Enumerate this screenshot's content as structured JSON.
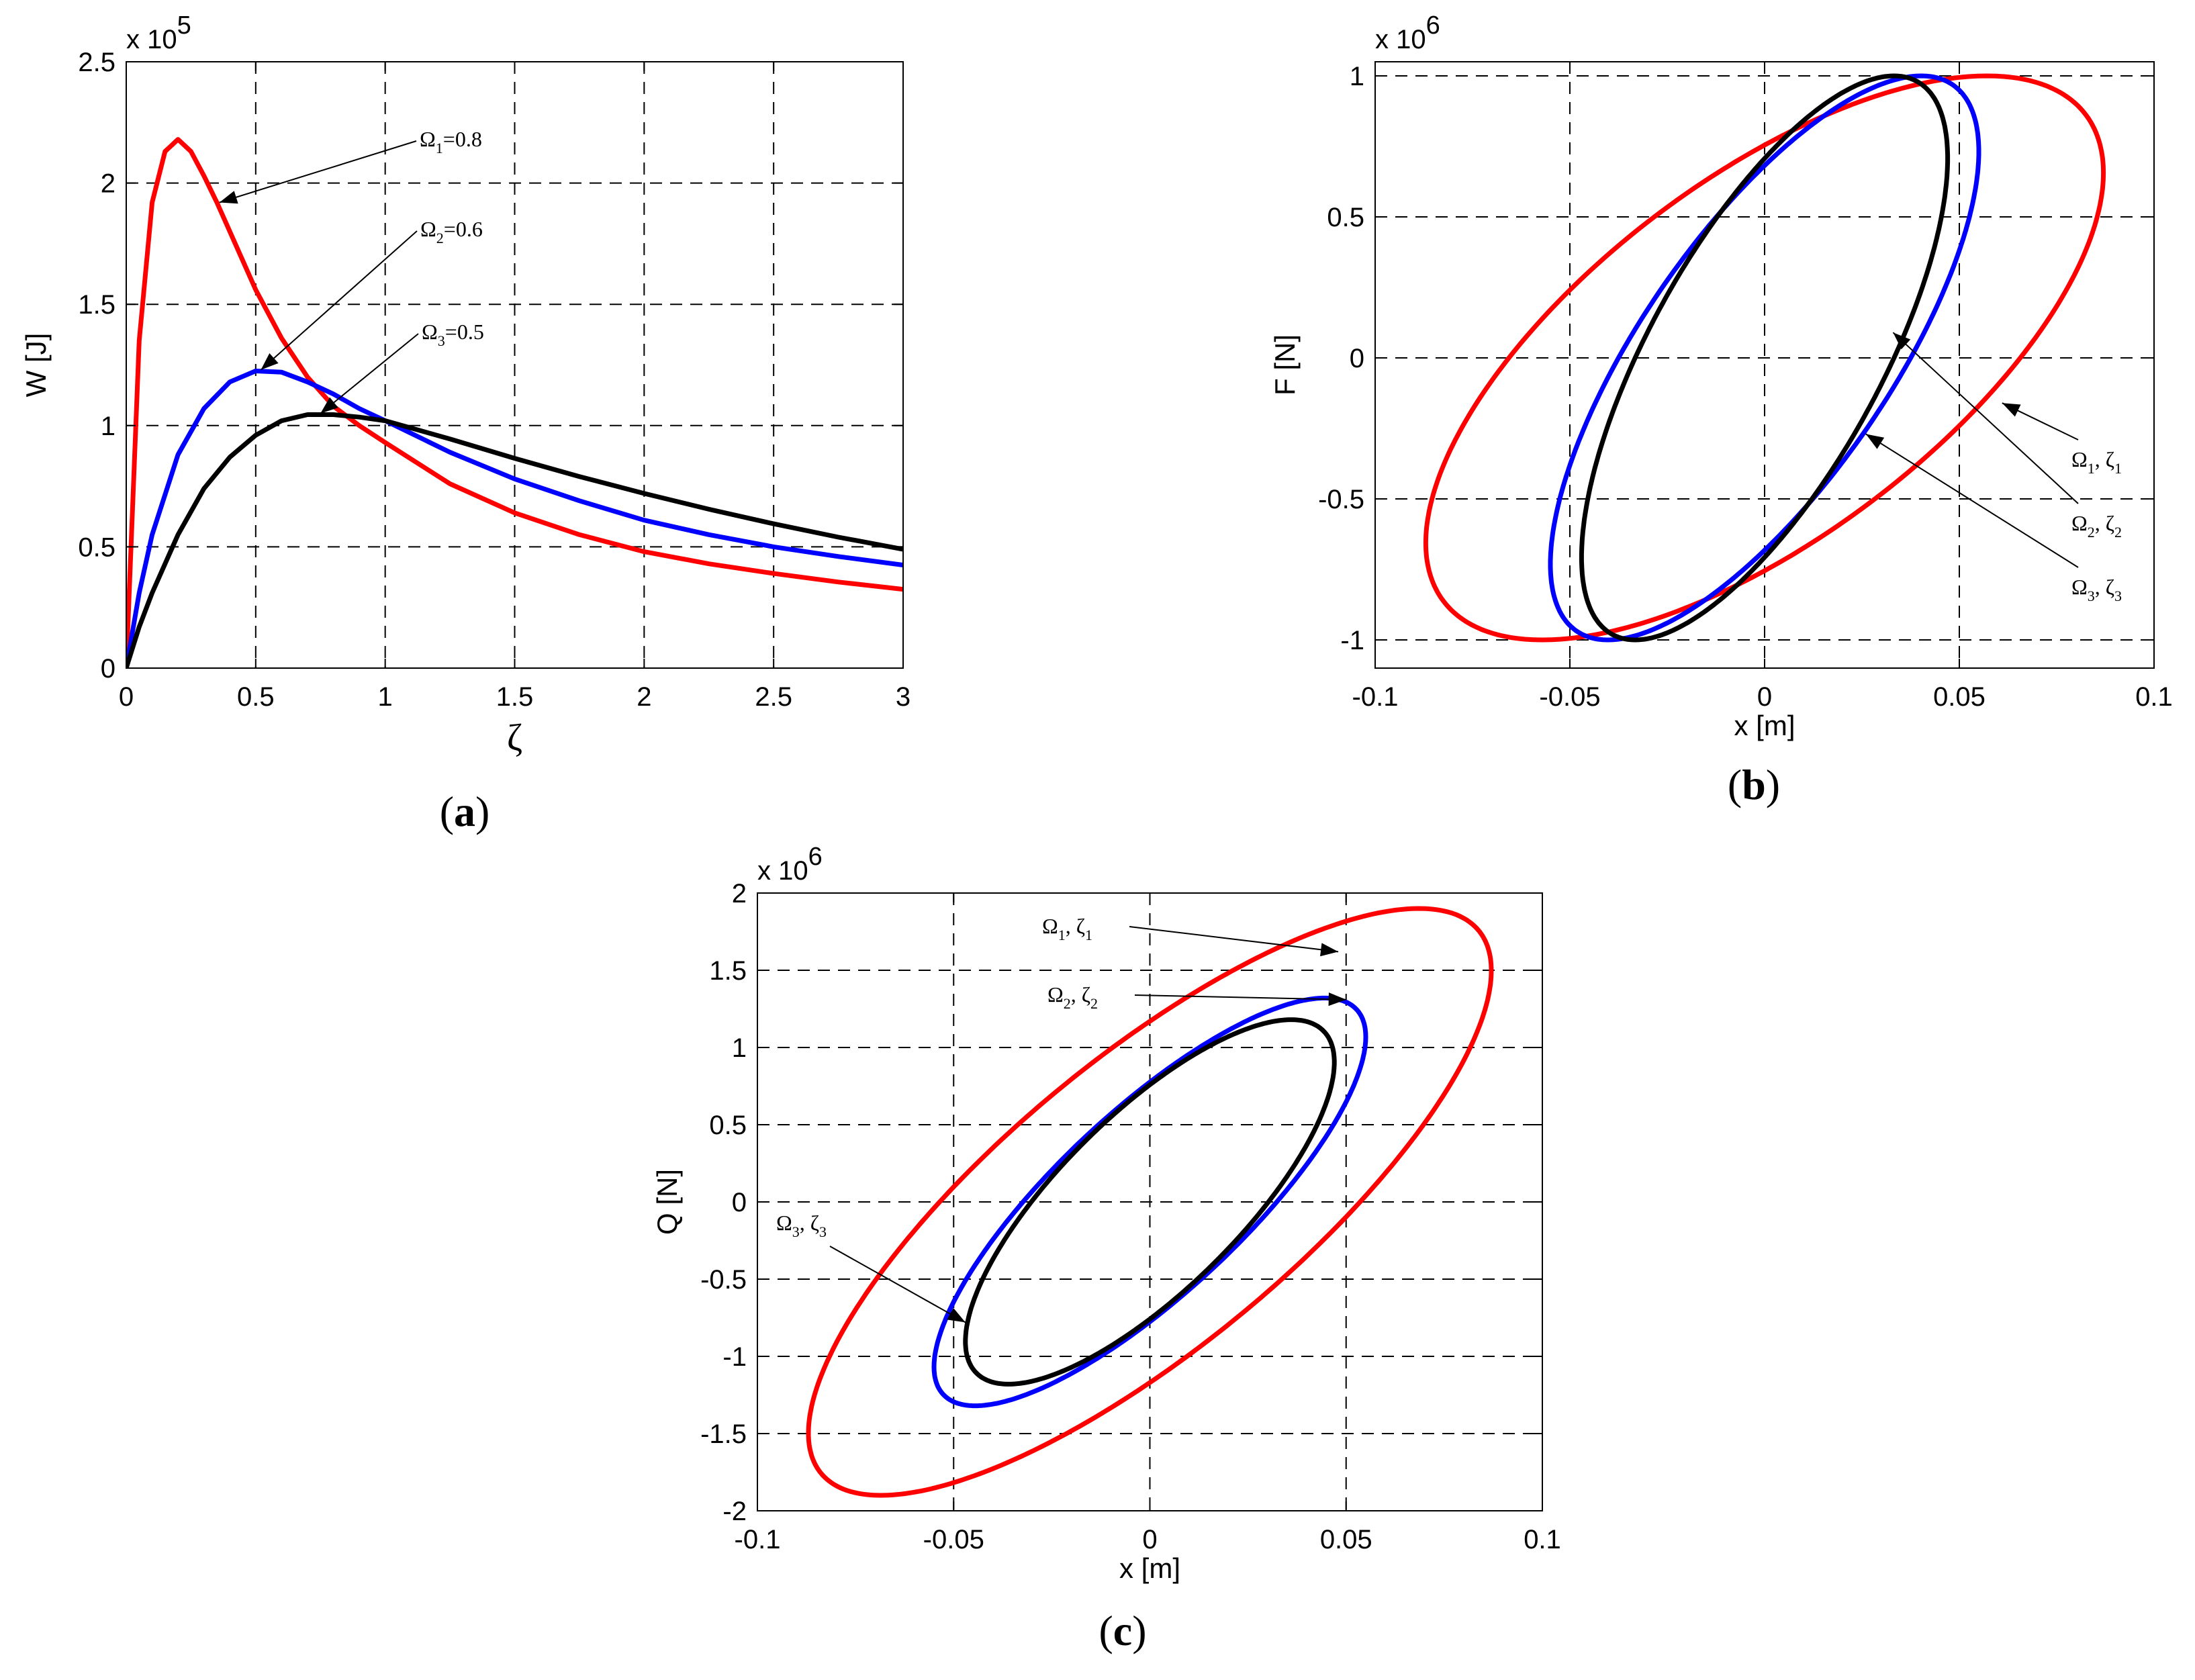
{
  "chart_data": [
    {
      "type": "line",
      "panel_label": "a",
      "xlabel": "ζ",
      "ylabel": "W  [J]",
      "exponent": {
        "base": "x 10",
        "power": "5"
      },
      "xlim": [
        0,
        3
      ],
      "ylim": [
        0,
        2.5
      ],
      "xticks": [
        "0",
        "0.5",
        "1",
        "1.5",
        "2",
        "2.5",
        "3"
      ],
      "yticks": [
        "0",
        "0.5",
        "1",
        "1.5",
        "2",
        "2.5"
      ],
      "grid": true,
      "series": [
        {
          "name": "Ω1=0.8",
          "color": "#ff0000",
          "x": [
            0,
            0.05,
            0.1,
            0.15,
            0.2,
            0.25,
            0.3,
            0.35,
            0.4,
            0.5,
            0.6,
            0.7,
            0.8,
            0.9,
            1.0,
            1.25,
            1.5,
            1.75,
            2.0,
            2.25,
            2.5,
            2.75,
            3.0
          ],
          "y": [
            0,
            1.35,
            1.92,
            2.13,
            2.18,
            2.13,
            2.03,
            1.92,
            1.8,
            1.56,
            1.36,
            1.2,
            1.08,
            1.0,
            0.93,
            0.76,
            0.64,
            0.55,
            0.48,
            0.43,
            0.39,
            0.355,
            0.325
          ]
        },
        {
          "name": "Ω2=0.6",
          "color": "#0000ff",
          "x": [
            0,
            0.05,
            0.1,
            0.2,
            0.3,
            0.4,
            0.5,
            0.6,
            0.7,
            0.8,
            0.9,
            1.0,
            1.25,
            1.5,
            1.75,
            2.0,
            2.25,
            2.5,
            2.75,
            3.0
          ],
          "y": [
            0,
            0.31,
            0.55,
            0.88,
            1.07,
            1.18,
            1.225,
            1.22,
            1.18,
            1.13,
            1.07,
            1.02,
            0.89,
            0.78,
            0.69,
            0.61,
            0.55,
            0.5,
            0.46,
            0.425
          ]
        },
        {
          "name": "Ω3=0.5",
          "color": "#000000",
          "x": [
            0,
            0.05,
            0.1,
            0.2,
            0.3,
            0.4,
            0.5,
            0.6,
            0.7,
            0.8,
            0.9,
            1.0,
            1.25,
            1.5,
            1.75,
            2.0,
            2.25,
            2.5,
            2.75,
            3.0
          ],
          "y": [
            0,
            0.17,
            0.31,
            0.55,
            0.74,
            0.87,
            0.96,
            1.02,
            1.045,
            1.045,
            1.035,
            1.02,
            0.945,
            0.865,
            0.79,
            0.72,
            0.655,
            0.595,
            0.54,
            0.49
          ]
        }
      ],
      "annotations": [
        {
          "sym": "Ω",
          "sub": "1",
          "val": "=0.8",
          "x": 0.36,
          "y": 1.92
        },
        {
          "sym": "Ω",
          "sub": "2",
          "val": "=0.6",
          "x": 0.52,
          "y": 1.23
        },
        {
          "sym": "Ω",
          "sub": "3",
          "val": "=0.5",
          "x": 0.75,
          "y": 1.05
        }
      ]
    },
    {
      "type": "line",
      "panel_label": "b",
      "xlabel": "x [m]",
      "ylabel": "F [N]",
      "exponent": {
        "base": "x 10",
        "power": "6"
      },
      "xlim": [
        -0.1,
        0.1
      ],
      "ylim": [
        -1.1,
        1.05
      ],
      "xticks": [
        "-0.1",
        "-0.05",
        "0",
        "0.05",
        "0.1"
      ],
      "yticks": [
        "-1",
        "-0.5",
        "0",
        "0.5",
        "1"
      ],
      "yticks_values": [
        -1,
        -0.5,
        0,
        0.5,
        1
      ],
      "grid": true,
      "series": [
        {
          "name": "Ω1, ζ1",
          "color": "#ff0000",
          "ellipse": {
            "a": 0.087,
            "b": 1.0,
            "phi_deg": 49
          }
        },
        {
          "name": "Ω2, ζ2",
          "color": "#0000ff",
          "ellipse": {
            "a": 0.055,
            "b": 1.0,
            "phi_deg": 43
          }
        },
        {
          "name": "Ω3, ζ3",
          "color": "#000000",
          "ellipse": {
            "a": 0.047,
            "b": 1.0,
            "phi_deg": 45
          }
        }
      ],
      "annotations": [
        {
          "sym": "Ω",
          "sub": "1",
          "sym2": "ζ",
          "sub2": "1",
          "x": 0.061,
          "y": -0.16
        },
        {
          "sym": "Ω",
          "sub": "2",
          "sym2": "ζ",
          "sub2": "2",
          "x": 0.033,
          "y": 0.09
        },
        {
          "sym": "Ω",
          "sub": "3",
          "sym2": "ζ",
          "sub2": "3",
          "x": 0.026,
          "y": -0.27
        }
      ]
    },
    {
      "type": "line",
      "panel_label": "c",
      "xlabel": "x [m]",
      "ylabel": "Q [N]",
      "exponent": {
        "base": "x 10",
        "power": "6"
      },
      "xlim": [
        -0.1,
        0.1
      ],
      "ylim": [
        -2,
        2
      ],
      "xticks": [
        "-0.1",
        "-0.05",
        "0",
        "0.05",
        "0.1"
      ],
      "yticks": [
        "-2",
        "-1.5",
        "-1",
        "-0.5",
        "0",
        "0.5",
        "1",
        "1.5",
        "2"
      ],
      "grid": true,
      "series": [
        {
          "name": "Ω1, ζ1",
          "color": "#ff0000",
          "ellipse": {
            "a": 0.087,
            "b": 1.9,
            "phi_deg": 38
          }
        },
        {
          "name": "Ω2, ζ2",
          "color": "#0000ff",
          "ellipse": {
            "a": 0.055,
            "b": 1.32,
            "phi_deg": 36
          }
        },
        {
          "name": "Ω3, ζ3",
          "color": "#000000",
          "ellipse": {
            "a": 0.047,
            "b": 1.18,
            "phi_deg": 40
          }
        }
      ],
      "annotations": [
        {
          "sym": "Ω",
          "sub": "1",
          "sym2": "ζ",
          "sub2": "1",
          "x": 0.048,
          "y": 1.62
        },
        {
          "sym": "Ω",
          "sub": "2",
          "sym2": "ζ",
          "sub2": "2",
          "x": 0.05,
          "y": 1.31
        },
        {
          "sym": "Ω",
          "sub": "3",
          "sym2": "ζ",
          "sub2": "3",
          "x": -0.047,
          "y": -0.78
        }
      ]
    }
  ]
}
